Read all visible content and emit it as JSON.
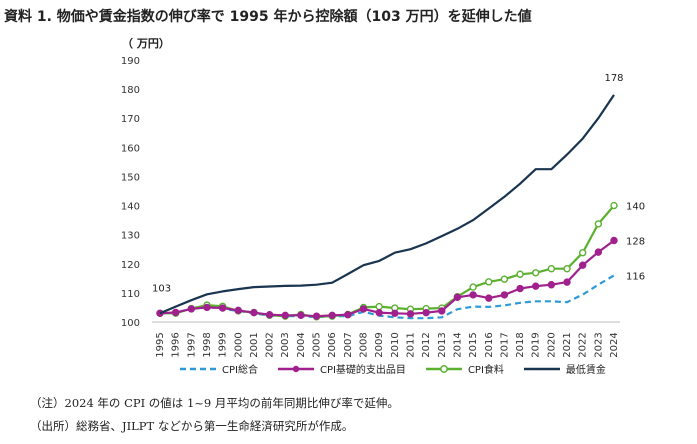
{
  "header": {
    "title": "資料 1.  物価や賃金指数の伸び率で 1995 年から控除額（103 万円）を延伸した値",
    "unit": "（ 万円）"
  },
  "notes": {
    "note": "（注）2024 年の CPI の値は 1~9 月平均の前年同期比伸び率で延伸。",
    "source": "（出所）総務省、JILPT などから第一生命経済研究所が作成。"
  },
  "chart_data": {
    "type": "line",
    "x": [
      "1995",
      "1996",
      "1997",
      "1998",
      "1999",
      "2000",
      "2001",
      "2002",
      "2003",
      "2004",
      "2005",
      "2006",
      "2007",
      "2008",
      "2009",
      "2010",
      "2011",
      "2012",
      "2013",
      "2014",
      "2015",
      "2016",
      "2017",
      "2018",
      "2019",
      "2020",
      "2021",
      "2022",
      "2023",
      "2024"
    ],
    "ylim": [
      100,
      190
    ],
    "yticks": [
      100,
      110,
      120,
      130,
      140,
      150,
      160,
      170,
      180,
      190
    ],
    "series": [
      {
        "name": "CPI総合",
        "color": "#2e9bd6",
        "style": "dashed",
        "marker": "none",
        "values": [
          103,
          103.1,
          104.6,
          105.2,
          104.5,
          103.8,
          103.0,
          102.2,
          102.0,
          102.0,
          101.7,
          102.0,
          102.0,
          103.5,
          102.2,
          101.6,
          101.3,
          101.3,
          101.6,
          104.4,
          105.3,
          105.2,
          105.7,
          106.6,
          107.1,
          107.1,
          106.8,
          109.4,
          112.8,
          116.0
        ]
      },
      {
        "name": "CPI基礎的支出品目",
        "color": "#a0208e",
        "style": "solid",
        "marker": "filled",
        "values": [
          103,
          103.3,
          104.5,
          105.0,
          104.8,
          104.0,
          103.2,
          102.5,
          102.3,
          102.3,
          102.0,
          102.3,
          102.5,
          104.5,
          103.2,
          103.0,
          102.8,
          103.2,
          103.8,
          108.5,
          109.3,
          108.2,
          109.3,
          111.5,
          112.3,
          112.8,
          113.7,
          119.5,
          124.0,
          128.0
        ]
      },
      {
        "name": "CPI食料",
        "color": "#5bb030",
        "style": "solid",
        "marker": "hollow",
        "values": [
          103,
          103.0,
          104.6,
          105.8,
          105.4,
          103.8,
          103.3,
          102.3,
          102.0,
          102.6,
          101.8,
          102.0,
          102.6,
          105.0,
          105.3,
          104.8,
          104.4,
          104.6,
          104.8,
          108.7,
          112.0,
          113.8,
          114.7,
          116.4,
          116.9,
          118.3,
          118.3,
          123.8,
          133.7,
          140.0
        ]
      },
      {
        "name": "最低賃金",
        "color": "#1a3550",
        "style": "solid",
        "marker": "none",
        "values": [
          103,
          105.3,
          107.5,
          109.5,
          110.5,
          111.3,
          112.0,
          112.2,
          112.4,
          112.5,
          112.8,
          113.5,
          116.5,
          119.5,
          121.0,
          123.8,
          125.0,
          127.0,
          129.5,
          132.0,
          135.0,
          139.0,
          143.0,
          147.5,
          152.5,
          152.5,
          157.5,
          163.0,
          170.0,
          178.0
        ]
      }
    ],
    "annotations": [
      {
        "text": "103",
        "series": 3,
        "index": 0
      },
      {
        "text": "178",
        "series": 3,
        "index": 29
      },
      {
        "text": "140",
        "series": 2,
        "index": 29
      },
      {
        "text": "128",
        "series": 1,
        "index": 29
      },
      {
        "text": "116",
        "series": 0,
        "index": 29
      }
    ],
    "grid": false,
    "legend": "bottom"
  }
}
